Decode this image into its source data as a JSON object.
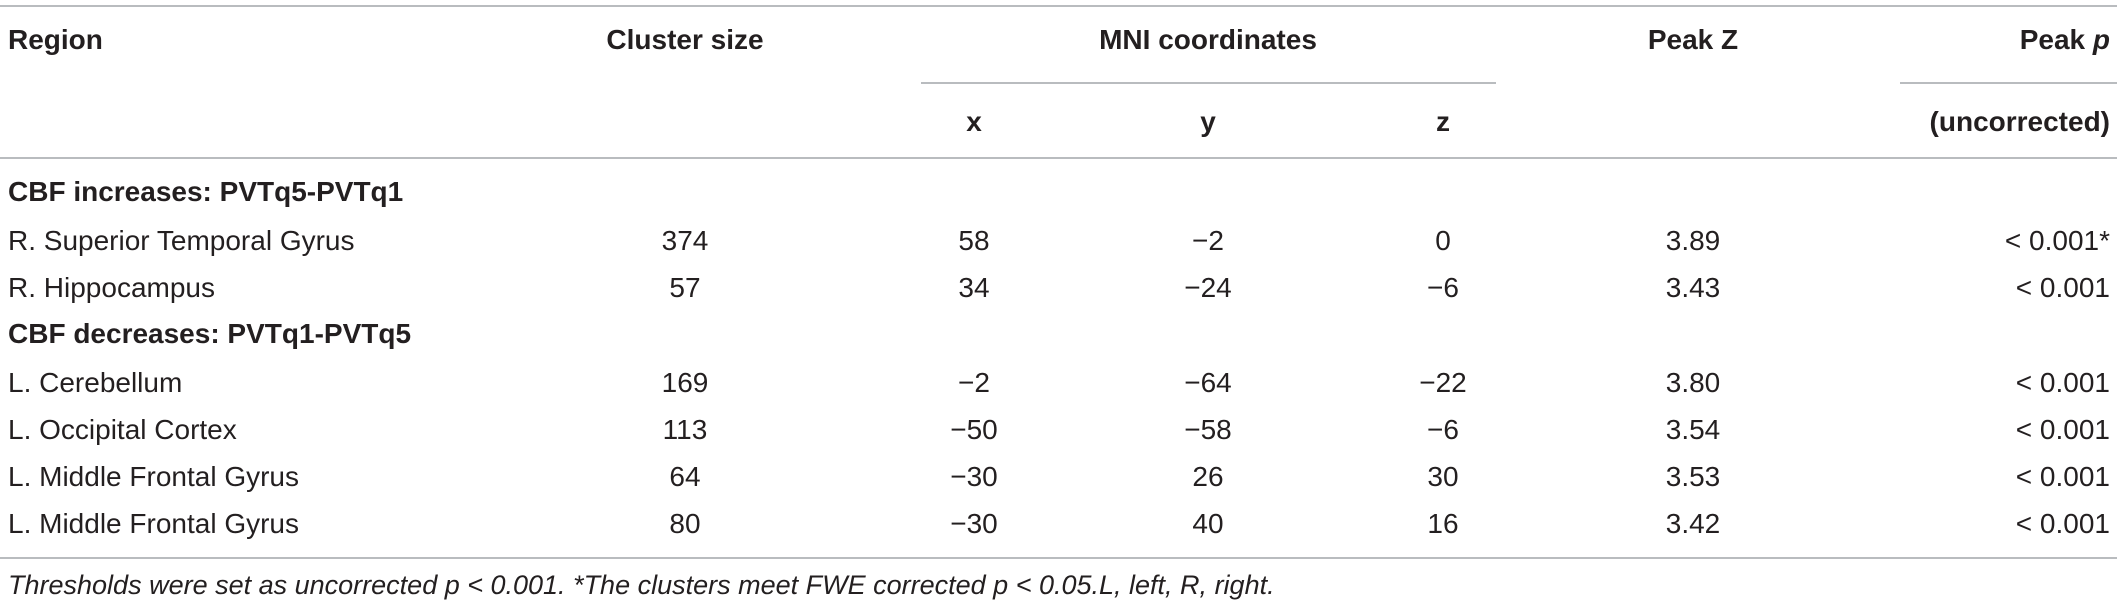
{
  "table": {
    "headers": {
      "region": "Region",
      "cluster_size": "Cluster size",
      "mni": "MNI coordinates",
      "x": "x",
      "y": "y",
      "z": "z",
      "peak_z": "Peak Z",
      "peak_p_prefix": "Peak ",
      "peak_p_italic": "p",
      "peak_p_sub": "(uncorrected)"
    },
    "sections": [
      {
        "title": "CBF increases: PVTq5-PVTq1",
        "rows": [
          {
            "region": "R. Superior Temporal Gyrus",
            "cluster_size": "374",
            "x": "58",
            "y": "−2",
            "z": "0",
            "peak_z": "3.89",
            "peak_p": "< 0.001*"
          },
          {
            "region": "R. Hippocampus",
            "cluster_size": "57",
            "x": "34",
            "y": "−24",
            "z": "−6",
            "peak_z": "3.43",
            "peak_p": "< 0.001"
          }
        ]
      },
      {
        "title": "CBF decreases: PVTq1-PVTq5",
        "rows": [
          {
            "region": "L. Cerebellum",
            "cluster_size": "169",
            "x": "−2",
            "y": "−64",
            "z": "−22",
            "peak_z": "3.80",
            "peak_p": "< 0.001"
          },
          {
            "region": "L. Occipital Cortex",
            "cluster_size": "113",
            "x": "−50",
            "y": "−58",
            "z": "−6",
            "peak_z": "3.54",
            "peak_p": "< 0.001"
          },
          {
            "region": "L. Middle Frontal Gyrus",
            "cluster_size": "64",
            "x": "−30",
            "y": "26",
            "z": "30",
            "peak_z": "3.53",
            "peak_p": "< 0.001"
          },
          {
            "region": "L. Middle Frontal Gyrus",
            "cluster_size": "80",
            "x": "−30",
            "y": "40",
            "z": "16",
            "peak_z": "3.42",
            "peak_p": "< 0.001"
          }
        ]
      }
    ],
    "footnote": "Thresholds were set as uncorrected p < 0.001. *The clusters meet FWE corrected p < 0.05.L, left, R, right."
  }
}
